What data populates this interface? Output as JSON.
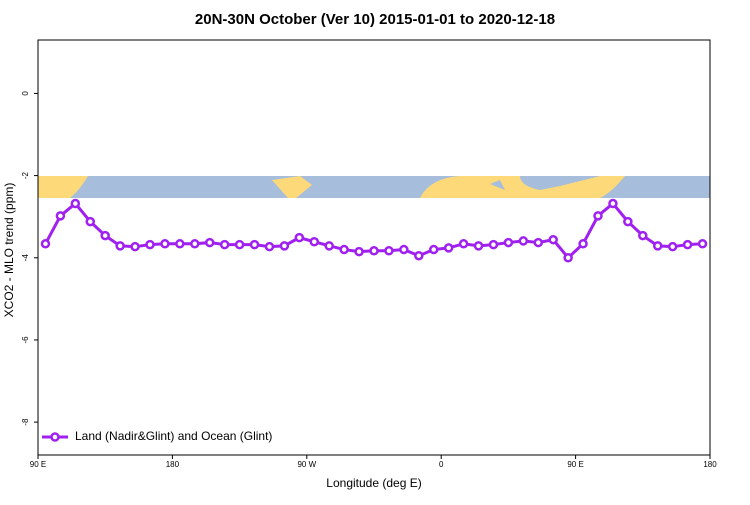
{
  "chart_data": {
    "type": "line",
    "title": "20N-30N October (Ver 10)   2015-01-01 to 2020-12-18",
    "x_label": "Longitude (deg E)",
    "y_label": "XCO2 - MLO trend (ppm)",
    "x": [
      95,
      105,
      115,
      125,
      135,
      145,
      155,
      165,
      175,
      185,
      195,
      205,
      215,
      225,
      235,
      245,
      255,
      265,
      275,
      285,
      295,
      305,
      315,
      325,
      335,
      345,
      355,
      365,
      375,
      385,
      395,
      405,
      415,
      425,
      435,
      445,
      455,
      465,
      475,
      485,
      495,
      505,
      515,
      525,
      535
    ],
    "series": [
      {
        "name": "Land (Nadir&Glint) and Ocean (Glint)",
        "color": "#a020f0",
        "values": [
          -3.66,
          -2.98,
          -2.68,
          -3.12,
          -3.46,
          -3.71,
          -3.73,
          -3.68,
          -3.66,
          -3.66,
          -3.66,
          -3.63,
          -3.68,
          -3.68,
          -3.68,
          -3.73,
          -3.71,
          -3.51,
          -3.61,
          -3.71,
          -3.8,
          -3.85,
          -3.83,
          -3.83,
          -3.8,
          -3.95,
          -3.8,
          -3.76,
          -3.66,
          -3.71,
          -3.68,
          -3.63,
          -3.59,
          -3.63,
          -3.56,
          -4.0,
          -3.66,
          -2.98,
          -2.68,
          -3.12,
          -3.46,
          -3.71,
          -3.73,
          -3.68,
          -3.66
        ]
      }
    ],
    "xlim": [
      90,
      540
    ],
    "xticks": [
      {
        "value": 90,
        "label": "90 E"
      },
      {
        "value": 180,
        "label": "180"
      },
      {
        "value": 270,
        "label": "90 W"
      },
      {
        "value": 360,
        "label": "0"
      },
      {
        "value": 450,
        "label": "90 E"
      },
      {
        "value": 540,
        "label": "180"
      }
    ],
    "ylim": [
      -8.8,
      1.3
    ],
    "yticks": [
      0,
      -2,
      -4,
      -6,
      -8
    ],
    "legend": "bottom-left"
  }
}
